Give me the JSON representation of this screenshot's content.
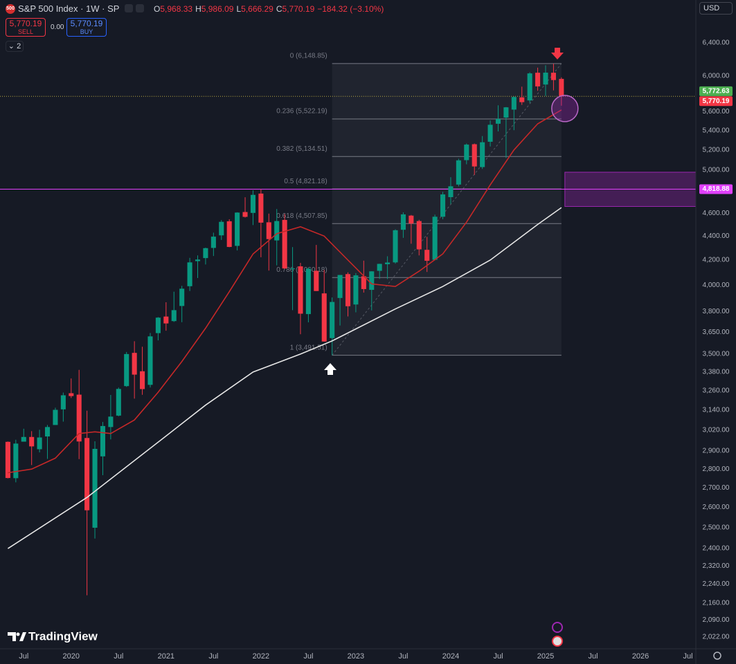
{
  "toolbar": {
    "symbol_badge": "500",
    "symbol": "S&P 500 Index · 1W · SP",
    "ohlc": [
      {
        "key": "O",
        "value": "5,968.33"
      },
      {
        "key": "H",
        "value": "5,986.09"
      },
      {
        "key": "L",
        "value": "5,666.29"
      },
      {
        "key": "C",
        "value": "5,770.19"
      }
    ],
    "change": "−184.32 (−3.10%)",
    "sell_price": "5,770.19",
    "sell": "SELL",
    "spread": "0.00",
    "buy_price": "5,770.19",
    "buy": "BUY",
    "indicators_count": "2",
    "currency": "USD"
  },
  "branding": "TradingView",
  "chart_data": {
    "type": "candlestick",
    "log_scale": true,
    "grid": false,
    "up_color": "#089981",
    "down_color": "#f23645",
    "x": [
      "2019-05",
      "2019-06",
      "2019-07",
      "2019-08",
      "2019-09",
      "2019-10",
      "2019-11",
      "2019-12",
      "2020-01",
      "2020-02",
      "2020-03",
      "2020-04",
      "2020-05",
      "2020-06",
      "2020-07",
      "2020-08",
      "2020-09",
      "2020-10",
      "2020-11",
      "2020-12",
      "2021-01",
      "2021-02",
      "2021-03",
      "2021-04",
      "2021-05",
      "2021-06",
      "2021-07",
      "2021-08",
      "2021-09",
      "2021-10",
      "2021-11",
      "2021-12",
      "2022-01",
      "2022-02",
      "2022-03",
      "2022-04",
      "2022-05",
      "2022-06",
      "2022-07",
      "2022-08",
      "2022-09",
      "2022-10",
      "2022-11",
      "2022-12",
      "2023-01",
      "2023-02",
      "2023-03",
      "2023-04",
      "2023-05",
      "2023-06",
      "2023-07",
      "2023-08",
      "2023-09",
      "2023-10",
      "2023-11",
      "2023-12",
      "2024-01",
      "2024-02",
      "2024-03",
      "2024-04",
      "2024-05",
      "2024-06",
      "2024-07",
      "2024-08",
      "2024-09",
      "2024-10",
      "2024-11",
      "2024-12",
      "2025-01",
      "2025-02",
      "2025-03"
    ],
    "open": [
      2952,
      2751,
      2953,
      2980,
      2910,
      2983,
      3050,
      3144,
      3244,
      3235,
      2974,
      2499,
      2870,
      3038,
      3106,
      3289,
      3508,
      3385,
      3297,
      3645,
      3764,
      3731,
      3842,
      3992,
      4191,
      4216,
      4300,
      4406,
      4528,
      4317,
      4610,
      4602,
      4778,
      4519,
      4363,
      4540,
      4130,
      4149,
      3782,
      4113,
      3937,
      3610,
      3902,
      4087,
      3853,
      4070,
      3964,
      4113,
      4166,
      4181,
      4454,
      4578,
      4530,
      4284,
      4202,
      4568,
      4745,
      4862,
      5098,
      5258,
      5030,
      5283,
      5471,
      5537,
      5623,
      5758,
      5724,
      6040,
      5903,
      6040,
      5968
    ],
    "high": [
      2954,
      2964,
      3028,
      3014,
      3022,
      3050,
      3154,
      3248,
      3338,
      3394,
      3136,
      2955,
      3068,
      3233,
      3280,
      3514,
      3588,
      3550,
      3646,
      3760,
      3870,
      3950,
      3995,
      4218,
      4238,
      4302,
      4429,
      4538,
      4546,
      4608,
      4744,
      4808,
      4819,
      4596,
      4637,
      4593,
      4307,
      4177,
      4140,
      4325,
      4120,
      3906,
      4080,
      4101,
      4095,
      4195,
      4110,
      4170,
      4231,
      4458,
      4607,
      4584,
      4541,
      4393,
      4587,
      4794,
      4932,
      5112,
      5265,
      5265,
      5342,
      5506,
      5670,
      5651,
      5768,
      5879,
      6045,
      6100,
      6128,
      6147,
      5986
    ],
    "low": [
      2750,
      2729,
      2953,
      2822,
      2892,
      2856,
      3050,
      3070,
      3214,
      2855,
      2192,
      2447,
      2767,
      2966,
      3102,
      3284,
      3210,
      3234,
      3280,
      3594,
      3662,
      3725,
      3723,
      3955,
      4056,
      4164,
      4233,
      4367,
      4306,
      4279,
      4561,
      4495,
      4223,
      4115,
      4157,
      4127,
      3811,
      3637,
      3722,
      3955,
      3585,
      3492,
      3699,
      3765,
      3795,
      3943,
      3809,
      4049,
      4048,
      4171,
      4385,
      4335,
      4238,
      4104,
      4198,
      4546,
      4683,
      4845,
      5057,
      4954,
      5012,
      5235,
      5390,
      5120,
      5403,
      5675,
      5696,
      5832,
      5774,
      5837,
      5666
    ],
    "close": [
      2752,
      2942,
      2980,
      2926,
      2977,
      3038,
      3141,
      3231,
      3226,
      2954,
      2585,
      2912,
      3044,
      3100,
      3271,
      3500,
      3363,
      3270,
      3622,
      3756,
      3714,
      3811,
      3973,
      4181,
      4204,
      4298,
      4395,
      4523,
      4308,
      4605,
      4567,
      4766,
      4516,
      4374,
      4530,
      4132,
      4132,
      3785,
      4130,
      3955,
      3586,
      3872,
      4080,
      3840,
      4077,
      3970,
      4109,
      4169,
      4180,
      4450,
      4589,
      4508,
      4288,
      4194,
      4568,
      4770,
      4846,
      5096,
      5254,
      5036,
      5278,
      5460,
      5522,
      5648,
      5762,
      5705,
      6032,
      5882,
      6041,
      5955,
      5770
    ],
    "moving_averages": [
      {
        "color": "#c62828",
        "x": [
          "2019-05",
          "2019-08",
          "2019-11",
          "2020-02",
          "2020-04",
          "2020-06",
          "2020-09",
          "2020-12",
          "2021-03",
          "2021-06",
          "2021-09",
          "2021-12",
          "2022-03",
          "2022-06",
          "2022-09",
          "2022-12",
          "2023-03",
          "2023-06",
          "2023-09",
          "2023-12",
          "2024-03",
          "2024-06",
          "2024-09",
          "2024-12",
          "2025-03"
        ],
        "values": [
          2780,
          2800,
          2860,
          3000,
          3010,
          3000,
          3080,
          3250,
          3450,
          3680,
          3950,
          4250,
          4420,
          4480,
          4400,
          4200,
          4010,
          3990,
          4110,
          4250,
          4520,
          4860,
          5200,
          5470,
          5620
        ]
      },
      {
        "color": "#e6e6e6",
        "x": [
          "2019-05",
          "2020-03",
          "2020-12",
          "2021-06",
          "2021-12",
          "2022-06",
          "2022-10",
          "2023-06",
          "2023-12",
          "2024-06",
          "2024-12",
          "2025-03"
        ],
        "values": [
          2400,
          2650,
          2950,
          3170,
          3380,
          3500,
          3590,
          3820,
          3990,
          4200,
          4500,
          4650
        ]
      }
    ],
    "fib": {
      "start": "2022-10",
      "end": "2025-03",
      "levels": [
        {
          "value": 6148.85,
          "label": "0 (6,148.85)"
        },
        {
          "value": 5522.19,
          "label": "0.236 (5,522.19)"
        },
        {
          "value": 5134.51,
          "label": "0.382 (5,134.51)"
        },
        {
          "value": 4821.18,
          "label": "0.5 (4,821.18)"
        },
        {
          "value": 4507.85,
          "label": "0.618 (4,507.85)"
        },
        {
          "value": 4060.18,
          "label": "0.786 (4,060.18)"
        },
        {
          "value": 3491.51,
          "label": "1 (3,491.51)"
        }
      ]
    },
    "zone": {
      "start": "2025-03",
      "range": [
        4660,
        4980
      ],
      "color": "#9c27b0"
    },
    "price_labels": [
      {
        "value": 5772.63,
        "label": "5,772.63",
        "color": "#4caf50"
      },
      {
        "value": 5770.19,
        "label": "5,770.19",
        "color": "#f23645"
      },
      {
        "value": 4818.88,
        "label": "4,818.88",
        "color": "#e040fb"
      }
    ],
    "xlim": [
      "2019-04",
      "2026-08"
    ],
    "xticks": [
      {
        "value": "2019-07",
        "label": "Jul"
      },
      {
        "value": "2020-01",
        "label": "2020"
      },
      {
        "value": "2020-07",
        "label": "Jul"
      },
      {
        "value": "2021-01",
        "label": "2021"
      },
      {
        "value": "2021-07",
        "label": "Jul"
      },
      {
        "value": "2022-01",
        "label": "2022"
      },
      {
        "value": "2022-07",
        "label": "Jul"
      },
      {
        "value": "2023-01",
        "label": "2023"
      },
      {
        "value": "2023-07",
        "label": "Jul"
      },
      {
        "value": "2024-01",
        "label": "2024"
      },
      {
        "value": "2024-07",
        "label": "Jul"
      },
      {
        "value": "2025-01",
        "label": "2025"
      },
      {
        "value": "2025-07",
        "label": "Jul"
      },
      {
        "value": "2026-01",
        "label": "2026"
      },
      {
        "value": "2026-07",
        "label": "Jul"
      }
    ],
    "ylim": [
      1976,
      6955
    ],
    "yticks": [
      {
        "value": 6400,
        "label": "6,400.00"
      },
      {
        "value": 6000,
        "label": "6,000.00"
      },
      {
        "value": 5600,
        "label": "5,600.00"
      },
      {
        "value": 5400,
        "label": "5,400.00"
      },
      {
        "value": 5200,
        "label": "5,200.00"
      },
      {
        "value": 5000,
        "label": "5,000.00"
      },
      {
        "value": 4600,
        "label": "4,600.00"
      },
      {
        "value": 4400,
        "label": "4,400.00"
      },
      {
        "value": 4200,
        "label": "4,200.00"
      },
      {
        "value": 4000,
        "label": "4,000.00"
      },
      {
        "value": 3800,
        "label": "3,800.00"
      },
      {
        "value": 3650,
        "label": "3,650.00"
      },
      {
        "value": 3500,
        "label": "3,500.00"
      },
      {
        "value": 3380,
        "label": "3,380.00"
      },
      {
        "value": 3260,
        "label": "3,260.00"
      },
      {
        "value": 3140,
        "label": "3,140.00"
      },
      {
        "value": 3020,
        "label": "3,020.00"
      },
      {
        "value": 2900,
        "label": "2,900.00"
      },
      {
        "value": 2800,
        "label": "2,800.00"
      },
      {
        "value": 2700,
        "label": "2,700.00"
      },
      {
        "value": 2600,
        "label": "2,600.00"
      },
      {
        "value": 2500,
        "label": "2,500.00"
      },
      {
        "value": 2400,
        "label": "2,400.00"
      },
      {
        "value": 2320,
        "label": "2,320.00"
      },
      {
        "value": 2240,
        "label": "2,240.00"
      },
      {
        "value": 2160,
        "label": "2,160.00"
      },
      {
        "value": 2090,
        "label": "2,090.00"
      },
      {
        "value": 2022,
        "label": "2,022.00"
      }
    ]
  }
}
